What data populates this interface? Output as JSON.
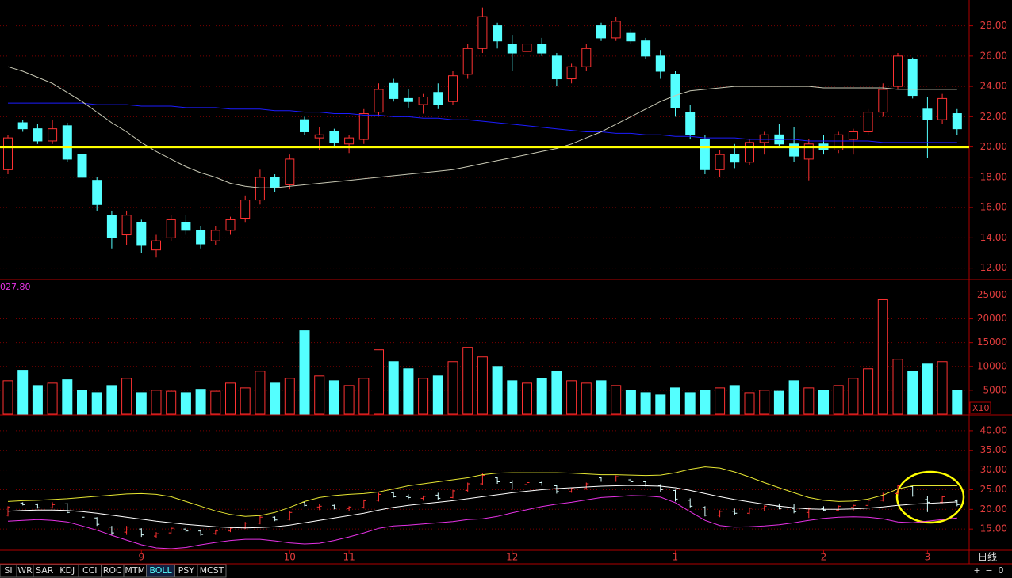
{
  "chart_data": [
    {
      "type": "candlestick",
      "categories": [
        null,
        null,
        null,
        null,
        null,
        null,
        null,
        null,
        null,
        "9",
        null,
        null,
        null,
        null,
        null,
        null,
        null,
        null,
        null,
        "10",
        null,
        null,
        null,
        "11",
        null,
        null,
        null,
        null,
        null,
        null,
        null,
        null,
        null,
        null,
        "12",
        null,
        null,
        null,
        null,
        null,
        null,
        null,
        null,
        null,
        null,
        "1",
        null,
        null,
        null,
        null,
        null,
        null,
        null,
        null,
        null,
        "2",
        null,
        null,
        null,
        null,
        null,
        null,
        "3",
        null,
        null
      ],
      "open": [
        18.5,
        21.6,
        21.2,
        20.4,
        21.4,
        19.5,
        17.8,
        15.5,
        14.2,
        15.0,
        13.2,
        14.0,
        15.0,
        14.5,
        13.8,
        14.5,
        15.3,
        16.5,
        18.0,
        17.5,
        21.8,
        20.6,
        21.0,
        20.2,
        20.5,
        22.3,
        24.2,
        23.2,
        22.8,
        23.6,
        23.0,
        24.8,
        26.5,
        28.0,
        26.8,
        26.3,
        26.8,
        26.0,
        24.5,
        25.3,
        28.0,
        27.2,
        27.5,
        27.0,
        26.0,
        24.8,
        22.3,
        20.5,
        18.5,
        19.5,
        19.0,
        20.3,
        20.8,
        20.2,
        19.2,
        20.2,
        19.8,
        20.5,
        21.0,
        22.3,
        24.0,
        25.8,
        22.5,
        21.8,
        22.2
      ],
      "high": [
        20.8,
        21.8,
        21.5,
        21.8,
        21.6,
        19.8,
        18.0,
        15.8,
        15.8,
        15.2,
        14.2,
        15.5,
        15.5,
        14.8,
        14.8,
        15.4,
        16.8,
        18.5,
        18.2,
        19.5,
        22.0,
        21.3,
        21.2,
        20.8,
        22.5,
        24.2,
        24.5,
        23.8,
        23.5,
        24.2,
        25.0,
        26.8,
        29.2,
        28.2,
        27.4,
        27.0,
        27.2,
        26.2,
        25.5,
        26.8,
        28.2,
        28.6,
        27.8,
        27.2,
        26.4,
        25.0,
        22.8,
        20.8,
        19.8,
        20.2,
        20.5,
        21.0,
        21.5,
        21.3,
        20.5,
        20.8,
        21.0,
        21.2,
        22.5,
        24.2,
        26.2,
        25.9,
        23.3,
        23.5,
        22.5
      ],
      "low": [
        18.2,
        21.0,
        20.2,
        20.2,
        19.0,
        17.8,
        15.8,
        13.3,
        13.5,
        13.0,
        12.7,
        13.8,
        14.2,
        13.3,
        13.5,
        14.2,
        15.0,
        16.2,
        17.0,
        17.2,
        20.8,
        19.8,
        20.0,
        19.6,
        20.2,
        22.0,
        23.0,
        22.6,
        22.2,
        22.5,
        22.8,
        24.5,
        26.2,
        26.5,
        25.0,
        25.8,
        26.0,
        24.0,
        24.2,
        25.0,
        27.0,
        27.0,
        26.8,
        25.8,
        24.5,
        22.0,
        20.5,
        18.2,
        18.0,
        18.6,
        18.8,
        19.5,
        20.0,
        19.0,
        17.8,
        19.5,
        19.6,
        19.5,
        20.8,
        22.0,
        23.8,
        23.2,
        19.3,
        21.5,
        20.8
      ],
      "close": [
        20.6,
        21.2,
        20.4,
        21.2,
        19.2,
        18.0,
        16.2,
        14.0,
        15.5,
        13.5,
        13.8,
        15.2,
        14.5,
        13.6,
        14.5,
        15.2,
        16.5,
        18.0,
        17.3,
        19.2,
        21.0,
        20.8,
        20.3,
        20.6,
        22.2,
        23.8,
        23.2,
        23.0,
        23.3,
        22.8,
        24.7,
        26.5,
        28.6,
        27.0,
        26.2,
        26.8,
        26.2,
        24.5,
        25.3,
        26.5,
        27.2,
        28.3,
        27.0,
        26.0,
        25.0,
        22.6,
        20.8,
        18.5,
        19.5,
        19.0,
        20.3,
        20.8,
        20.2,
        19.4,
        20.2,
        19.8,
        20.8,
        21.0,
        22.3,
        23.8,
        26.0,
        23.4,
        21.8,
        23.2,
        21.2
      ],
      "up_color": "#ff3232",
      "down_color": "#54ffff",
      "series": [
        {
          "color": "#1c1cff",
          "values": [
            22.9,
            22.9,
            22.9,
            22.9,
            22.9,
            22.9,
            22.8,
            22.8,
            22.8,
            22.7,
            22.7,
            22.7,
            22.6,
            22.6,
            22.6,
            22.5,
            22.5,
            22.5,
            22.4,
            22.4,
            22.3,
            22.3,
            22.2,
            22.2,
            22.1,
            22.1,
            22.0,
            22.0,
            21.9,
            21.9,
            21.8,
            21.8,
            21.7,
            21.6,
            21.5,
            21.4,
            21.3,
            21.2,
            21.1,
            21.0,
            21.0,
            20.9,
            20.9,
            20.8,
            20.8,
            20.7,
            20.7,
            20.6,
            20.6,
            20.6,
            20.5,
            20.5,
            20.5,
            20.5,
            20.4,
            20.4,
            20.4,
            20.4,
            20.4,
            20.3,
            20.3,
            20.3,
            20.3,
            20.3,
            20.3
          ]
        },
        {
          "color": "#c8c8b4",
          "values": [
            25.3,
            25.0,
            24.6,
            24.2,
            23.6,
            23.0,
            22.3,
            21.6,
            21.0,
            20.3,
            19.7,
            19.2,
            18.7,
            18.3,
            18.0,
            17.6,
            17.4,
            17.3,
            17.3,
            17.4,
            17.5,
            17.6,
            17.7,
            17.8,
            17.9,
            18.0,
            18.1,
            18.2,
            18.3,
            18.4,
            18.5,
            18.7,
            18.9,
            19.1,
            19.3,
            19.5,
            19.7,
            19.9,
            20.2,
            20.6,
            21.0,
            21.5,
            22.0,
            22.5,
            23.0,
            23.4,
            23.7,
            23.8,
            23.9,
            24.0,
            24.0,
            24.0,
            24.0,
            24.0,
            24.0,
            23.9,
            23.9,
            23.9,
            23.9,
            23.9,
            23.8,
            23.8,
            23.8,
            23.8,
            23.8
          ]
        }
      ],
      "hline": {
        "value": 20,
        "color": "#ffff00"
      },
      "ylim": [
        11.3,
        29.6
      ],
      "yticks": [
        {
          "value": 12,
          "label": "12.00"
        },
        {
          "value": 14,
          "label": "14.00"
        },
        {
          "value": 16,
          "label": "16.00"
        },
        {
          "value": 18,
          "label": "18.00"
        },
        {
          "value": 20,
          "label": "20.00"
        },
        {
          "value": 22,
          "label": "22.00"
        },
        {
          "value": 24,
          "label": "24.00"
        },
        {
          "value": 26,
          "label": "26.00"
        },
        {
          "value": 28,
          "label": "28.00"
        }
      ],
      "grid": true
    },
    {
      "type": "bar",
      "annotation": "027.80",
      "unit_label": "X10",
      "values": [
        7000,
        9200,
        6000,
        6500,
        7200,
        5000,
        4500,
        6000,
        7500,
        4500,
        5000,
        4800,
        4500,
        5200,
        4800,
        6500,
        5500,
        9000,
        6500,
        7500,
        17500,
        8000,
        7000,
        6000,
        7500,
        13500,
        11000,
        9500,
        7500,
        8000,
        11000,
        14000,
        12000,
        10000,
        7000,
        6500,
        7500,
        9000,
        7000,
        6500,
        7000,
        6000,
        5000,
        4500,
        4000,
        5500,
        4500,
        5000,
        5500,
        6000,
        4500,
        5000,
        4800,
        7000,
        5500,
        5000,
        6000,
        7500,
        9500,
        24000,
        11500,
        9000,
        10500,
        11000,
        5000
      ],
      "ylim": [
        0,
        27400
      ],
      "yticks": [
        5000,
        10000,
        15000,
        20000,
        25000
      ],
      "grid": true
    },
    {
      "type": "line",
      "series": [
        {
          "color": "#e6e632",
          "values": [
            22.0,
            22.2,
            22.3,
            22.5,
            22.7,
            23.0,
            23.3,
            23.6,
            23.9,
            24.0,
            23.8,
            23.2,
            22.0,
            20.8,
            19.6,
            18.7,
            18.2,
            18.4,
            19.2,
            20.5,
            22.0,
            23.0,
            23.5,
            23.8,
            24.0,
            24.4,
            25.2,
            26.0,
            26.5,
            27.0,
            27.5,
            28.0,
            28.8,
            29.2,
            29.3,
            29.3,
            29.3,
            29.3,
            29.2,
            29.0,
            28.8,
            28.8,
            28.7,
            28.6,
            28.7,
            29.3,
            30.2,
            30.8,
            30.5,
            29.5,
            28.2,
            26.8,
            25.5,
            24.2,
            23.0,
            22.3,
            22.0,
            22.1,
            22.6,
            23.6,
            25.2,
            26.0,
            26.0,
            26.0,
            26.0
          ]
        },
        {
          "color": "#ffffff",
          "values": [
            19.5,
            19.7,
            19.8,
            19.8,
            19.7,
            19.4,
            19.0,
            18.5,
            18.0,
            17.5,
            17.0,
            16.6,
            16.2,
            15.9,
            15.6,
            15.4,
            15.3,
            15.4,
            15.6,
            16.0,
            16.6,
            17.2,
            17.8,
            18.4,
            19.0,
            19.8,
            20.5,
            21.0,
            21.4,
            21.8,
            22.2,
            22.7,
            23.2,
            23.7,
            24.2,
            24.6,
            25.0,
            25.3,
            25.5,
            25.7,
            25.9,
            26.0,
            26.1,
            26.0,
            25.9,
            25.5,
            24.8,
            24.0,
            23.2,
            22.5,
            21.9,
            21.3,
            20.8,
            20.4,
            20.1,
            20.0,
            20.0,
            20.1,
            20.3,
            20.6,
            21.0,
            21.3,
            21.5,
            21.7,
            21.9
          ]
        },
        {
          "color": "#e632e6",
          "values": [
            17.0,
            17.2,
            17.4,
            17.2,
            16.8,
            15.8,
            14.7,
            13.4,
            12.2,
            11.0,
            10.2,
            10.0,
            10.3,
            11.0,
            11.6,
            12.1,
            12.4,
            12.4,
            12.0,
            11.5,
            11.2,
            11.4,
            12.1,
            13.0,
            14.0,
            15.2,
            15.8,
            16.0,
            16.3,
            16.6,
            16.9,
            17.4,
            17.6,
            18.2,
            19.1,
            19.9,
            20.7,
            21.3,
            21.8,
            22.4,
            23.0,
            23.2,
            23.5,
            23.4,
            23.1,
            21.7,
            19.4,
            17.2,
            15.9,
            15.5,
            15.6,
            15.8,
            16.1,
            16.6,
            17.2,
            17.7,
            18.0,
            18.1,
            18.0,
            17.6,
            16.8,
            16.6,
            17.0,
            17.4,
            17.8
          ]
        }
      ],
      "ylim": [
        9.6,
        43.6
      ],
      "yticks": [
        {
          "value": 15,
          "label": "15.00"
        },
        {
          "value": 20,
          "label": "20.00"
        },
        {
          "value": 25,
          "label": "25.00"
        },
        {
          "value": 30,
          "label": "30.00"
        },
        {
          "value": 35,
          "label": "35.00"
        },
        {
          "value": 40,
          "label": "40.00"
        }
      ],
      "grid": true
    }
  ],
  "toolbar": {
    "tabs": [
      "SI",
      "WR",
      "SAR",
      "KDJ",
      "CCI",
      "ROC",
      "MTM",
      "BOLL",
      "PSY",
      "MCST"
    ],
    "active": 7
  },
  "period": "日线",
  "controls": [
    "+",
    "−",
    "0"
  ]
}
